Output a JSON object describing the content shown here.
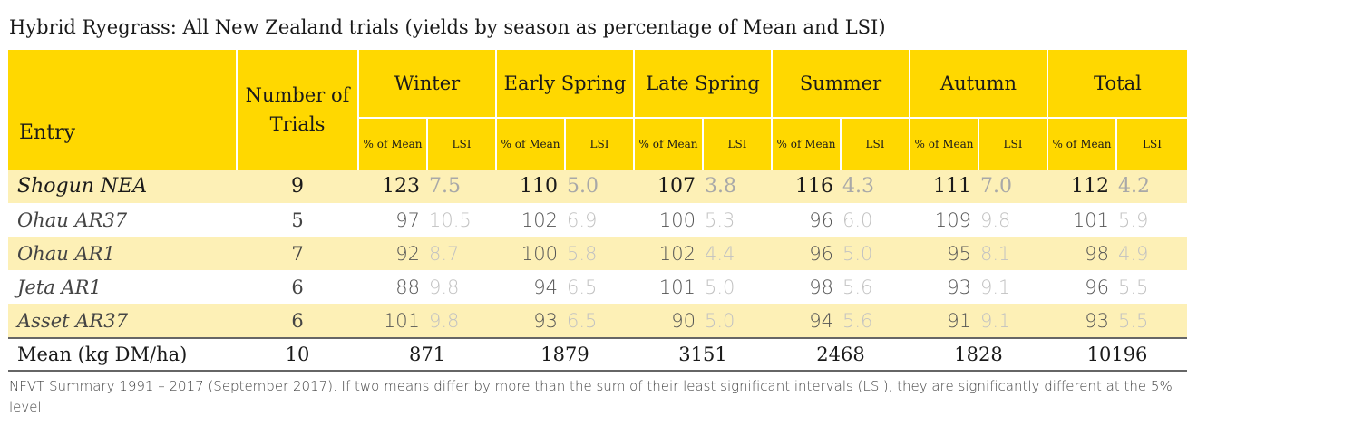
{
  "chart_data": {
    "type": "table",
    "title": "Hybrid Ryegrass: All New Zealand trials (yields by season as percentage of Mean and LSI)",
    "header": {
      "entry": "Entry",
      "trials": "Number of Trials",
      "seasons": [
        "Winter",
        "Early Spring",
        "Late Spring",
        "Summer",
        "Autumn",
        "Total"
      ],
      "pct_label": "% of Mean",
      "lsi_label": "LSI"
    },
    "rows": [
      {
        "entry": "Shogun NEA",
        "trials": "9",
        "cells": [
          [
            "123",
            "7.5"
          ],
          [
            "110",
            "5.0"
          ],
          [
            "107",
            "3.8"
          ],
          [
            "116",
            "4.3"
          ],
          [
            "111",
            "7.0"
          ],
          [
            "112",
            "4.2"
          ]
        ]
      },
      {
        "entry": "Ohau AR37",
        "trials": "5",
        "cells": [
          [
            "97",
            "10.5"
          ],
          [
            "102",
            "6.9"
          ],
          [
            "100",
            "5.3"
          ],
          [
            "96",
            "6.0"
          ],
          [
            "109",
            "9.8"
          ],
          [
            "101",
            "5.9"
          ]
        ]
      },
      {
        "entry": "Ohau AR1",
        "trials": "7",
        "cells": [
          [
            "92",
            "8.7"
          ],
          [
            "100",
            "5.8"
          ],
          [
            "102",
            "4.4"
          ],
          [
            "96",
            "5.0"
          ],
          [
            "95",
            "8.1"
          ],
          [
            "98",
            "4.9"
          ]
        ]
      },
      {
        "entry": "Jeta AR1",
        "trials": "6",
        "cells": [
          [
            "88",
            "9.8"
          ],
          [
            "94",
            "6.5"
          ],
          [
            "101",
            "5.0"
          ],
          [
            "98",
            "5.6"
          ],
          [
            "93",
            "9.1"
          ],
          [
            "96",
            "5.5"
          ]
        ]
      },
      {
        "entry": "Asset AR37",
        "trials": "6",
        "cells": [
          [
            "101",
            "9.8"
          ],
          [
            "93",
            "6.5"
          ],
          [
            "90",
            "5.0"
          ],
          [
            "94",
            "5.6"
          ],
          [
            "91",
            "9.1"
          ],
          [
            "93",
            "5.5"
          ]
        ]
      }
    ],
    "mean_row": {
      "label": "Mean (kg DM/ha)",
      "trials": "10",
      "values": [
        "871",
        "1879",
        "3151",
        "2468",
        "1828",
        "10196"
      ]
    },
    "footnote": "NFVT Summary 1991 – 2017 (September 2017). If two means differ by more than the sum of their least significant intervals (LSI), they are significantly different at the 5% level",
    "colors": {
      "header": "#ffd800",
      "row_shade": "#fdf0b6",
      "lsi_text": "#c2c2c2"
    }
  }
}
